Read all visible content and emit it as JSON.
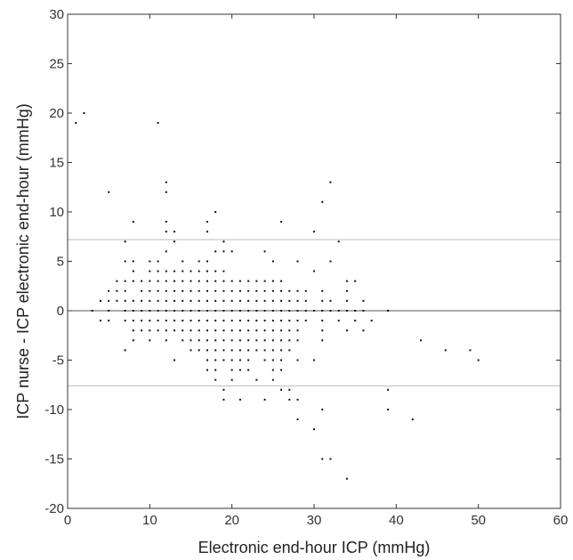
{
  "chart_data": {
    "type": "scatter",
    "title": "",
    "xlabel": "Electronic end-hour ICP (mmHg)",
    "ylabel": "ICP nurse - ICP electronic end-hour (mmHg)",
    "xlim": [
      0,
      60
    ],
    "ylim": [
      -20,
      30
    ],
    "x_ticks": [
      0,
      10,
      20,
      30,
      40,
      50,
      60
    ],
    "y_ticks": [
      -20,
      -15,
      -10,
      -5,
      0,
      5,
      10,
      15,
      20,
      25,
      30
    ],
    "x_tick_labels": [
      "0",
      "10",
      "20",
      "30",
      "40",
      "50",
      "60"
    ],
    "y_tick_labels": [
      "-20",
      "-15",
      "-10",
      "-5",
      "0",
      "5",
      "10",
      "15",
      "20",
      "25",
      "30"
    ],
    "reference_lines": [
      {
        "y": 0,
        "style": "solid",
        "color": "#555555"
      },
      {
        "y": 7.2,
        "style": "solid",
        "color": "#bbbbbb"
      },
      {
        "y": -7.6,
        "style": "solid",
        "color": "#bbbbbb"
      }
    ],
    "grid": false,
    "point_color": "#111111",
    "points": [
      [
        1,
        19
      ],
      [
        2,
        20
      ],
      [
        11,
        19
      ],
      [
        5,
        12
      ],
      [
        12,
        13
      ],
      [
        12,
        12
      ],
      [
        32,
        13
      ],
      [
        31,
        11
      ],
      [
        8,
        9
      ],
      [
        12,
        9
      ],
      [
        17,
        9
      ],
      [
        18,
        10
      ],
      [
        26,
        9
      ],
      [
        30,
        8
      ],
      [
        33,
        7
      ],
      [
        7,
        7
      ],
      [
        12,
        8
      ],
      [
        13,
        8
      ],
      [
        13,
        7
      ],
      [
        17,
        8
      ],
      [
        19,
        7
      ],
      [
        7,
        5
      ],
      [
        8,
        5
      ],
      [
        10,
        5
      ],
      [
        11,
        5
      ],
      [
        12,
        6
      ],
      [
        14,
        5
      ],
      [
        16,
        5
      ],
      [
        17,
        5
      ],
      [
        18,
        6
      ],
      [
        19,
        6
      ],
      [
        20,
        6
      ],
      [
        24,
        6
      ],
      [
        25,
        5
      ],
      [
        28,
        5
      ],
      [
        30,
        4
      ],
      [
        32,
        5
      ],
      [
        34,
        3
      ],
      [
        35,
        3
      ],
      [
        6,
        3
      ],
      [
        6,
        2
      ],
      [
        7,
        3
      ],
      [
        7,
        2
      ],
      [
        8,
        3
      ],
      [
        8,
        4
      ],
      [
        9,
        3
      ],
      [
        9,
        2
      ],
      [
        10,
        4
      ],
      [
        10,
        3
      ],
      [
        10,
        2
      ],
      [
        11,
        4
      ],
      [
        11,
        3
      ],
      [
        11,
        2
      ],
      [
        12,
        4
      ],
      [
        12,
        3
      ],
      [
        12,
        2
      ],
      [
        13,
        4
      ],
      [
        13,
        3
      ],
      [
        13,
        2
      ],
      [
        14,
        4
      ],
      [
        14,
        3
      ],
      [
        14,
        2
      ],
      [
        15,
        4
      ],
      [
        15,
        3
      ],
      [
        15,
        2
      ],
      [
        16,
        4
      ],
      [
        16,
        3
      ],
      [
        16,
        2
      ],
      [
        17,
        4
      ],
      [
        17,
        3
      ],
      [
        17,
        2
      ],
      [
        18,
        4
      ],
      [
        18,
        3
      ],
      [
        18,
        2
      ],
      [
        19,
        4
      ],
      [
        19,
        3
      ],
      [
        19,
        2
      ],
      [
        20,
        3
      ],
      [
        20,
        2
      ],
      [
        21,
        3
      ],
      [
        21,
        2
      ],
      [
        22,
        3
      ],
      [
        22,
        2
      ],
      [
        23,
        3
      ],
      [
        23,
        2
      ],
      [
        24,
        3
      ],
      [
        24,
        2
      ],
      [
        25,
        3
      ],
      [
        25,
        2
      ],
      [
        26,
        3
      ],
      [
        26,
        2
      ],
      [
        27,
        2
      ],
      [
        28,
        2
      ],
      [
        29,
        2
      ],
      [
        31,
        2
      ],
      [
        34,
        2
      ],
      [
        36,
        1
      ],
      [
        4,
        1
      ],
      [
        5,
        1
      ],
      [
        5,
        2
      ],
      [
        6,
        1
      ],
      [
        7,
        1
      ],
      [
        8,
        1
      ],
      [
        9,
        1
      ],
      [
        10,
        1
      ],
      [
        11,
        1
      ],
      [
        12,
        1
      ],
      [
        13,
        1
      ],
      [
        14,
        1
      ],
      [
        15,
        1
      ],
      [
        16,
        1
      ],
      [
        17,
        1
      ],
      [
        18,
        1
      ],
      [
        19,
        1
      ],
      [
        20,
        1
      ],
      [
        21,
        1
      ],
      [
        22,
        1
      ],
      [
        23,
        1
      ],
      [
        24,
        1
      ],
      [
        25,
        1
      ],
      [
        26,
        1
      ],
      [
        27,
        1
      ],
      [
        28,
        1
      ],
      [
        29,
        1
      ],
      [
        31,
        1
      ],
      [
        32,
        1
      ],
      [
        34,
        1
      ],
      [
        3,
        0
      ],
      [
        5,
        0
      ],
      [
        7,
        0
      ],
      [
        8,
        0
      ],
      [
        9,
        0
      ],
      [
        10,
        0
      ],
      [
        11,
        0
      ],
      [
        12,
        0
      ],
      [
        13,
        0
      ],
      [
        14,
        0
      ],
      [
        15,
        0
      ],
      [
        16,
        0
      ],
      [
        17,
        0
      ],
      [
        18,
        0
      ],
      [
        19,
        0
      ],
      [
        20,
        0
      ],
      [
        21,
        0
      ],
      [
        22,
        0
      ],
      [
        23,
        0
      ],
      [
        24,
        0
      ],
      [
        25,
        0
      ],
      [
        26,
        0
      ],
      [
        27,
        0
      ],
      [
        28,
        0
      ],
      [
        29,
        0
      ],
      [
        30,
        0
      ],
      [
        31,
        0
      ],
      [
        32,
        0
      ],
      [
        33,
        0
      ],
      [
        34,
        0
      ],
      [
        35,
        0
      ],
      [
        36,
        0
      ],
      [
        39,
        0
      ],
      [
        4,
        -1
      ],
      [
        5,
        -1
      ],
      [
        7,
        -1
      ],
      [
        8,
        -1
      ],
      [
        9,
        -1
      ],
      [
        10,
        -1
      ],
      [
        11,
        -1
      ],
      [
        12,
        -1
      ],
      [
        13,
        -1
      ],
      [
        14,
        -1
      ],
      [
        15,
        -1
      ],
      [
        16,
        -1
      ],
      [
        17,
        -1
      ],
      [
        18,
        -1
      ],
      [
        19,
        -1
      ],
      [
        20,
        -1
      ],
      [
        21,
        -1
      ],
      [
        22,
        -1
      ],
      [
        23,
        -1
      ],
      [
        24,
        -1
      ],
      [
        25,
        -1
      ],
      [
        26,
        -1
      ],
      [
        27,
        -1
      ],
      [
        28,
        -1
      ],
      [
        29,
        -1
      ],
      [
        31,
        -1
      ],
      [
        33,
        -1
      ],
      [
        35,
        -1
      ],
      [
        37,
        -1
      ],
      [
        8,
        -2
      ],
      [
        9,
        -2
      ],
      [
        10,
        -2
      ],
      [
        11,
        -2
      ],
      [
        12,
        -2
      ],
      [
        13,
        -2
      ],
      [
        14,
        -2
      ],
      [
        15,
        -2
      ],
      [
        16,
        -2
      ],
      [
        17,
        -2
      ],
      [
        18,
        -2
      ],
      [
        19,
        -2
      ],
      [
        20,
        -2
      ],
      [
        21,
        -2
      ],
      [
        22,
        -2
      ],
      [
        23,
        -2
      ],
      [
        24,
        -2
      ],
      [
        25,
        -2
      ],
      [
        26,
        -2
      ],
      [
        27,
        -2
      ],
      [
        28,
        -2
      ],
      [
        31,
        -2
      ],
      [
        34,
        -2
      ],
      [
        36,
        -2
      ],
      [
        8,
        -3
      ],
      [
        10,
        -3
      ],
      [
        12,
        -3
      ],
      [
        14,
        -3
      ],
      [
        15,
        -3
      ],
      [
        16,
        -3
      ],
      [
        17,
        -3
      ],
      [
        18,
        -3
      ],
      [
        19,
        -3
      ],
      [
        20,
        -3
      ],
      [
        21,
        -3
      ],
      [
        22,
        -3
      ],
      [
        23,
        -3
      ],
      [
        24,
        -3
      ],
      [
        25,
        -3
      ],
      [
        26,
        -3
      ],
      [
        27,
        -3
      ],
      [
        28,
        -3
      ],
      [
        31,
        -3
      ],
      [
        7,
        -4
      ],
      [
        15,
        -4
      ],
      [
        16,
        -4
      ],
      [
        17,
        -4
      ],
      [
        18,
        -4
      ],
      [
        19,
        -4
      ],
      [
        20,
        -4
      ],
      [
        21,
        -4
      ],
      [
        22,
        -4
      ],
      [
        23,
        -4
      ],
      [
        24,
        -4
      ],
      [
        25,
        -4
      ],
      [
        26,
        -4
      ],
      [
        27,
        -4
      ],
      [
        13,
        -5
      ],
      [
        17,
        -5
      ],
      [
        18,
        -5
      ],
      [
        19,
        -5
      ],
      [
        20,
        -5
      ],
      [
        21,
        -5
      ],
      [
        22,
        -5
      ],
      [
        24,
        -5
      ],
      [
        25,
        -5
      ],
      [
        26,
        -5
      ],
      [
        28,
        -5
      ],
      [
        30,
        -5
      ],
      [
        17,
        -6
      ],
      [
        18,
        -6
      ],
      [
        20,
        -6
      ],
      [
        21,
        -6
      ],
      [
        22,
        -6
      ],
      [
        25,
        -6
      ],
      [
        26,
        -6
      ],
      [
        18,
        -7
      ],
      [
        20,
        -7
      ],
      [
        23,
        -7
      ],
      [
        25,
        -7
      ],
      [
        19,
        -8
      ],
      [
        26,
        -8
      ],
      [
        27,
        -8
      ],
      [
        39,
        -8
      ],
      [
        19,
        -9
      ],
      [
        21,
        -9
      ],
      [
        24,
        -9
      ],
      [
        27,
        -9
      ],
      [
        28,
        -9
      ],
      [
        31,
        -10
      ],
      [
        39,
        -10
      ],
      [
        28,
        -11
      ],
      [
        42,
        -11
      ],
      [
        30,
        -12
      ],
      [
        31,
        -15
      ],
      [
        32,
        -15
      ],
      [
        34,
        -17
      ],
      [
        43,
        -3
      ],
      [
        46,
        -4
      ],
      [
        49,
        -4
      ],
      [
        50,
        -5
      ]
    ]
  }
}
